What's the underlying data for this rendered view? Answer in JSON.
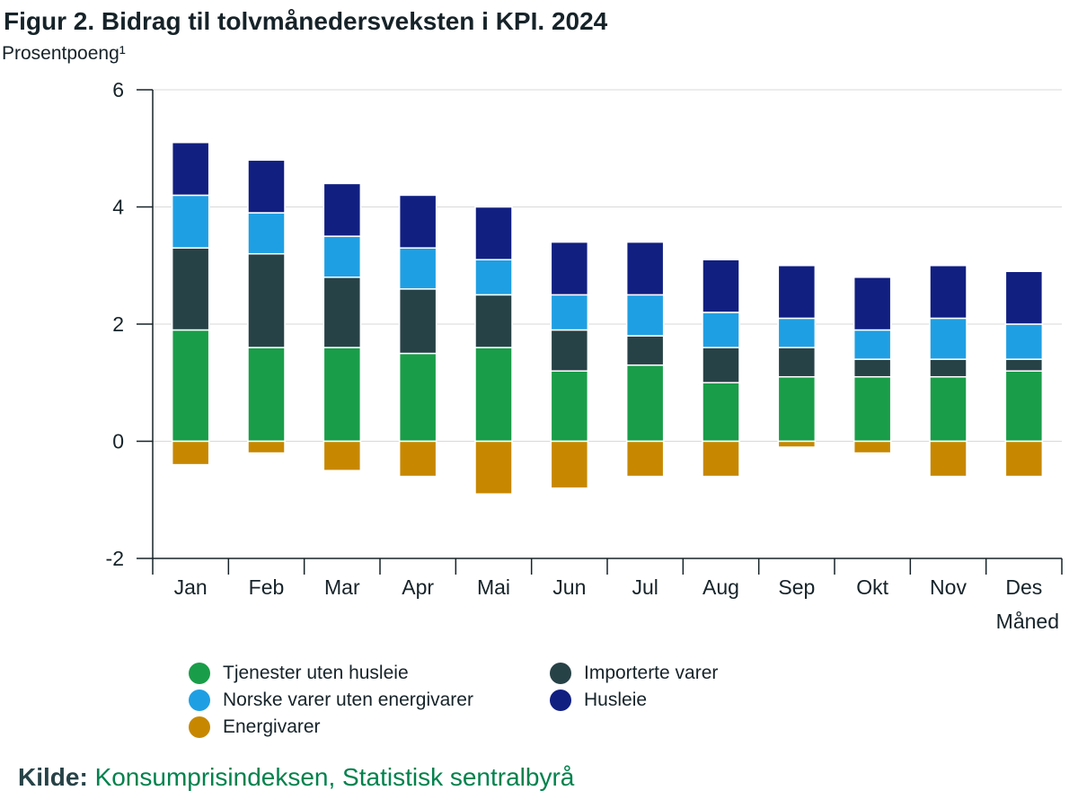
{
  "header": {
    "title": "Figur 2. Bidrag til tolvmånedersveksten i KPI. 2024",
    "subtitle": "Prosentpoeng¹"
  },
  "source": {
    "label": "Kilde:",
    "text": "Konsumprisindeksen, Statistisk sentralbyrå"
  },
  "chart_data": {
    "type": "bar",
    "stacked": true,
    "title": "Figur 2. Bidrag til tolvmånedersveksten i KPI. 2024",
    "ylabel": "Prosentpoeng¹",
    "xlabel": "Måned",
    "ylim": [
      -2,
      6
    ],
    "yticks": [
      "-2",
      "0",
      "2",
      "4",
      "6"
    ],
    "grid": true,
    "legend_position": "bottom",
    "categories": [
      "Jan",
      "Feb",
      "Mar",
      "Apr",
      "Mai",
      "Jun",
      "Jul",
      "Aug",
      "Sep",
      "Okt",
      "Nov",
      "Des"
    ],
    "series": [
      {
        "name": "Tjenester uten husleie",
        "color": "#1a9d49",
        "values": [
          1.9,
          1.6,
          1.6,
          1.5,
          1.6,
          1.2,
          1.3,
          1.0,
          1.1,
          1.1,
          1.1,
          1.2
        ]
      },
      {
        "name": "Importerte varer",
        "color": "#274247",
        "values": [
          1.4,
          1.6,
          1.2,
          1.1,
          0.9,
          0.7,
          0.5,
          0.6,
          0.5,
          0.3,
          0.3,
          0.2
        ]
      },
      {
        "name": "Norske varer uten energivarer",
        "color": "#1f9fe3",
        "values": [
          0.9,
          0.7,
          0.7,
          0.7,
          0.6,
          0.6,
          0.7,
          0.6,
          0.5,
          0.5,
          0.7,
          0.6
        ]
      },
      {
        "name": "Husleie",
        "color": "#111f81",
        "values": [
          0.9,
          0.9,
          0.9,
          0.9,
          0.9,
          0.9,
          0.9,
          0.9,
          0.9,
          0.9,
          0.9,
          0.9
        ]
      },
      {
        "name": "Energivarer",
        "color": "#c78800",
        "values": [
          -0.4,
          -0.2,
          -0.5,
          -0.6,
          -0.9,
          -0.8,
          -0.6,
          -0.6,
          -0.1,
          -0.2,
          -0.6,
          -0.6
        ]
      }
    ]
  },
  "legend": {
    "items": [
      {
        "label": "Tjenester uten husleie",
        "color": "#1a9d49"
      },
      {
        "label": "Importerte varer",
        "color": "#274247"
      },
      {
        "label": "Norske varer uten energivarer",
        "color": "#1f9fe3"
      },
      {
        "label": "Husleie",
        "color": "#111f81"
      },
      {
        "label": "Energivarer",
        "color": "#c78800"
      }
    ]
  }
}
